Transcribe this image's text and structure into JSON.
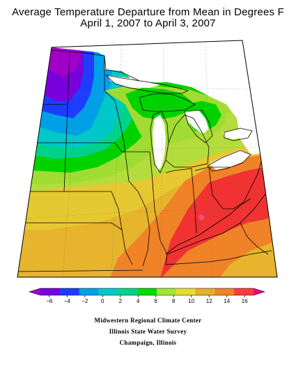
{
  "title": {
    "line1": "Average Temperature Departure from Mean in Degrees F",
    "line2": "April 1, 2007 to April 3, 2007"
  },
  "legend": {
    "ticks": [
      "−6",
      "−4",
      "−2",
      "0",
      "2",
      "4",
      "6",
      "8",
      "10",
      "12",
      "14",
      "16"
    ],
    "colors": [
      "#a000c8",
      "#7800dc",
      "#1e3cff",
      "#00a0e6",
      "#00c8c8",
      "#00d28c",
      "#00dc00",
      "#a0e632",
      "#e6dc32",
      "#e6af2d",
      "#f08228",
      "#fa3c3c",
      "#f00082"
    ]
  },
  "credits": {
    "line1": "Midwestern Regional Climate Center",
    "line2": "Illinois State Water Survey",
    "line3": "Champaign, Illinois"
  }
}
